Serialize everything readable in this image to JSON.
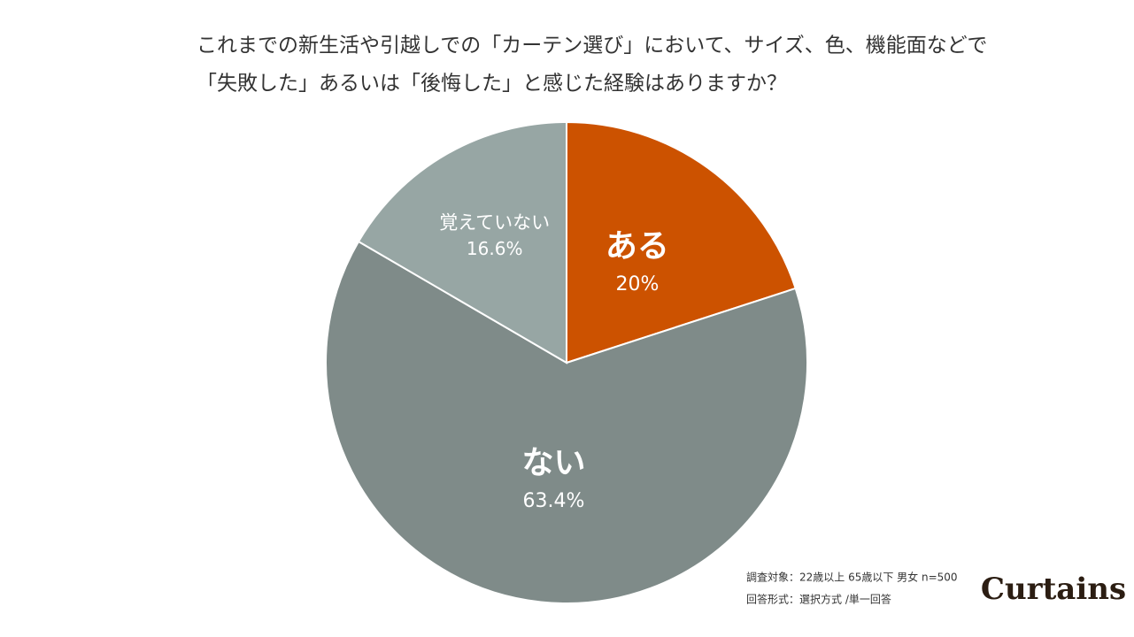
{
  "chart_data": {
    "type": "pie",
    "title": [
      "これまでの新生活や引越しでの「カーテン選び」において、サイズ、色、機能面などで",
      "「失敗した」あるいは「後悔した」と感じた経験はありますか？"
    ],
    "categories": [
      "ある",
      "ない",
      "覚えていない"
    ],
    "values": [
      20,
      63.4,
      16.6
    ],
    "value_labels": [
      "20%",
      "63.4%",
      "16.6%"
    ],
    "colors": [
      "#cc5200",
      "#7f8b89",
      "#97a6a4"
    ],
    "notes": [
      "調査対象：22歳以上 65歳以下 男女 n=500",
      "回答形式：選択方式 /単一回答"
    ],
    "logo": "Curtains"
  }
}
